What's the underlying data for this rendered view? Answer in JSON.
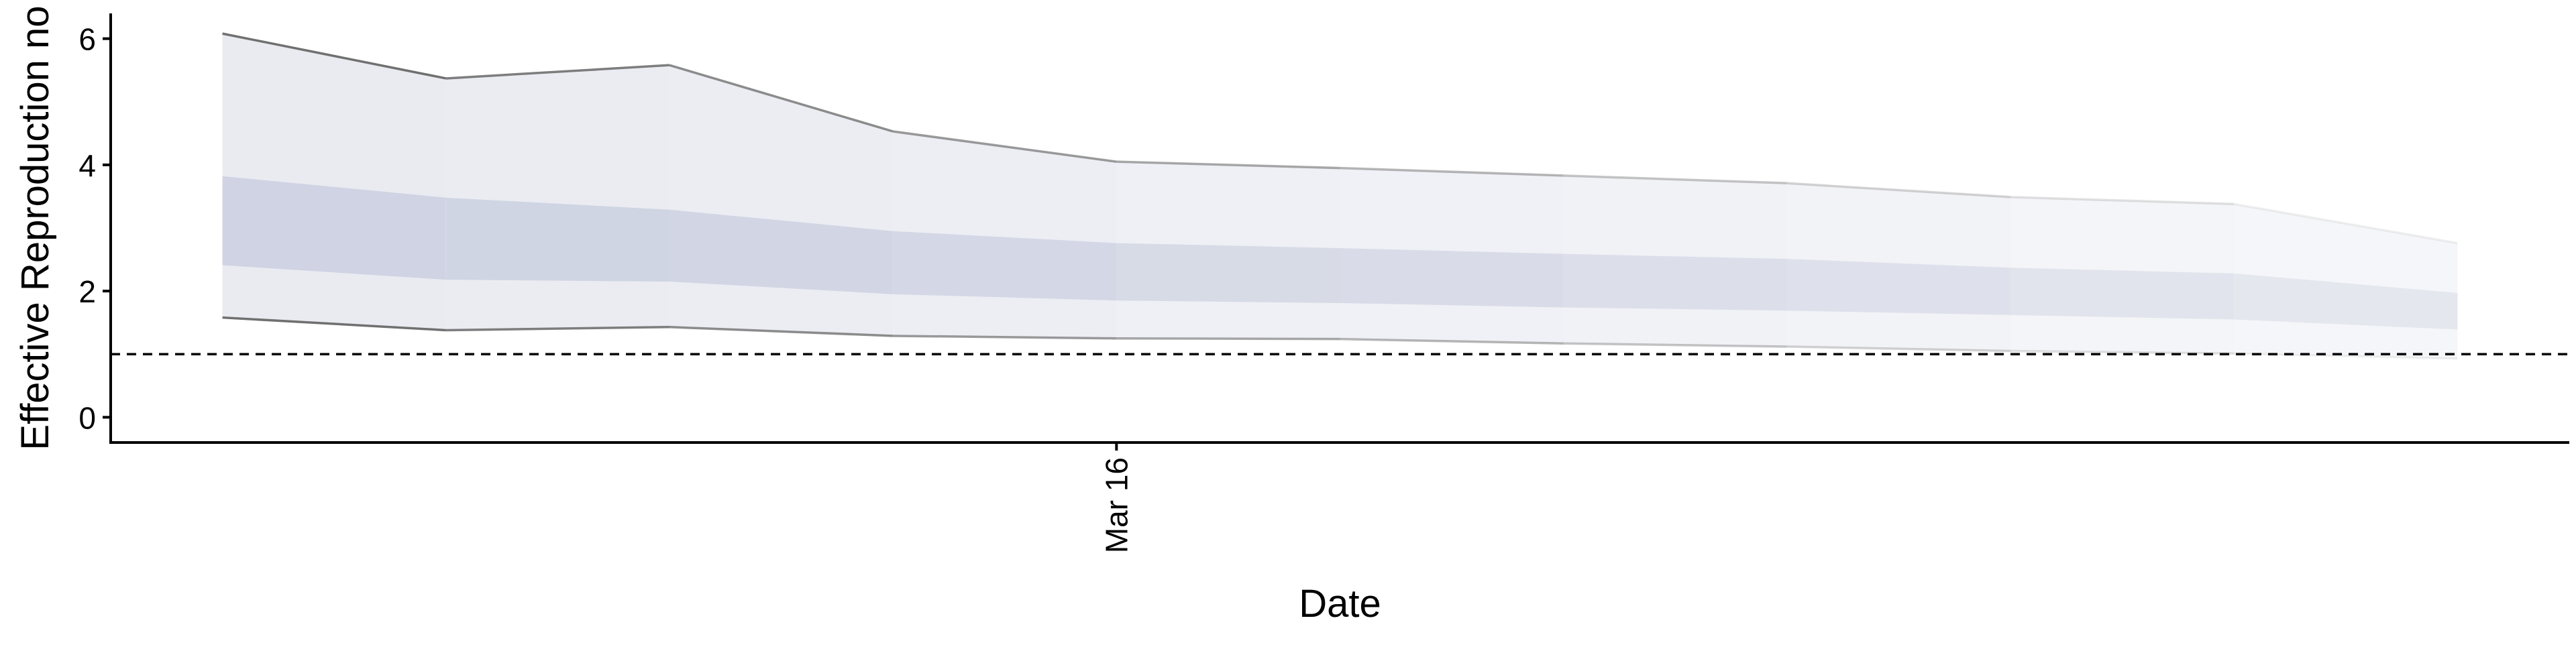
{
  "chart_data": {
    "type": "area",
    "xlabel": "Date",
    "ylabel": "Effective Reproduction no",
    "x": [
      -4,
      -3,
      -2,
      -1,
      0,
      1,
      2,
      3,
      4,
      5,
      6
    ],
    "x_tick_labels": [
      {
        "x": 0,
        "label": "Mar 16"
      }
    ],
    "xlim": [
      -4.5,
      6.5
    ],
    "ylim": [
      -0.4,
      6.4
    ],
    "yticks": [
      0,
      2,
      4,
      6
    ],
    "grid": false,
    "legend": "none",
    "reference_line": {
      "y": 1,
      "style": "dashed",
      "color": "#000000"
    },
    "series": [
      {
        "role": "upper_90",
        "values": [
          6.08,
          5.37,
          5.58,
          4.53,
          4.05,
          3.95,
          3.83,
          3.71,
          3.49,
          3.38,
          2.76
        ]
      },
      {
        "role": "upper_50",
        "values": [
          3.82,
          3.48,
          3.29,
          2.95,
          2.76,
          2.68,
          2.59,
          2.51,
          2.37,
          2.28,
          1.97
        ]
      },
      {
        "role": "lower_50",
        "values": [
          2.41,
          2.18,
          2.15,
          1.95,
          1.85,
          1.81,
          1.74,
          1.69,
          1.62,
          1.55,
          1.39
        ]
      },
      {
        "role": "lower_90",
        "values": [
          1.58,
          1.38,
          1.43,
          1.29,
          1.25,
          1.24,
          1.17,
          1.12,
          1.05,
          1.01,
          0.93
        ]
      }
    ],
    "colors": {
      "outer_band": "#e5e7ef",
      "inner_band": "#cdd2e1",
      "bound_line": "#707070",
      "axis": "#000000"
    }
  }
}
